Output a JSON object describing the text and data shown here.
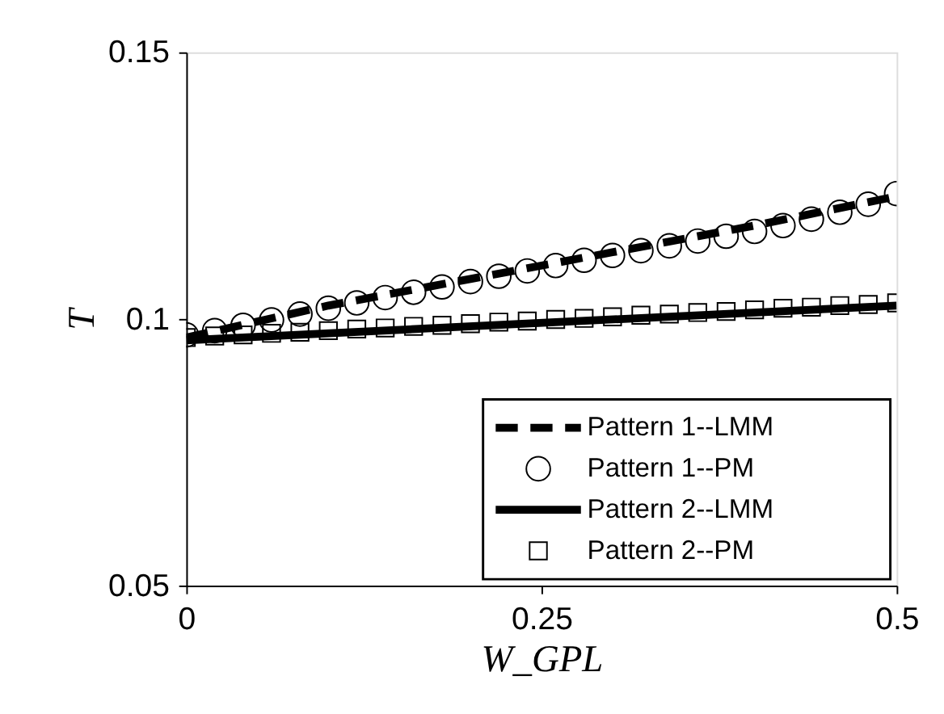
{
  "chart_data": {
    "type": "line",
    "xlabel": "W_GPL",
    "ylabel": "T",
    "xlim": [
      0,
      0.5
    ],
    "ylim": [
      0.05,
      0.15
    ],
    "xticks": [
      0,
      0.25,
      0.5
    ],
    "yticks": [
      0.05,
      0.1,
      0.15
    ],
    "grid": false,
    "legend": "bottom right",
    "series": [
      {
        "name": "Pattern 1--LMM",
        "type": "line",
        "line_style": "dashed",
        "marker": "none",
        "color": "#000000",
        "x": [
          0,
          0.1,
          0.2,
          0.3,
          0.4,
          0.5
        ],
        "values": [
          0.0965,
          0.1025,
          0.1075,
          0.1125,
          0.1175,
          0.123
        ]
      },
      {
        "name": "Pattern 1--PM",
        "type": "scatter",
        "marker": "circle",
        "color": "#000000",
        "x": [
          0,
          0.02,
          0.04,
          0.06,
          0.08,
          0.1,
          0.12,
          0.14,
          0.16,
          0.18,
          0.2,
          0.22,
          0.24,
          0.26,
          0.28,
          0.3,
          0.32,
          0.34,
          0.36,
          0.38,
          0.4,
          0.42,
          0.44,
          0.46,
          0.48,
          0.5
        ],
        "values": [
          0.097,
          0.0978,
          0.0988,
          0.0998,
          0.1009,
          0.102,
          0.103,
          0.104,
          0.105,
          0.106,
          0.107,
          0.108,
          0.109,
          0.11,
          0.111,
          0.1119,
          0.1128,
          0.1137,
          0.1146,
          0.1155,
          0.1164,
          0.1175,
          0.1187,
          0.12,
          0.1215,
          0.1235
        ]
      },
      {
        "name": "Pattern 2--LMM",
        "type": "line",
        "line_style": "solid",
        "marker": "none",
        "color": "#000000",
        "x": [
          0,
          0.5
        ],
        "values": [
          0.096,
          0.1025
        ]
      },
      {
        "name": "Pattern 2--PM",
        "type": "scatter",
        "marker": "square",
        "color": "#000000",
        "x": [
          0,
          0.02,
          0.04,
          0.06,
          0.08,
          0.1,
          0.12,
          0.14,
          0.16,
          0.18,
          0.2,
          0.22,
          0.24,
          0.26,
          0.28,
          0.3,
          0.32,
          0.34,
          0.36,
          0.38,
          0.4,
          0.42,
          0.44,
          0.46,
          0.48,
          0.5
        ],
        "values": [
          0.0965,
          0.0968,
          0.097,
          0.0973,
          0.0975,
          0.0978,
          0.0981,
          0.0983,
          0.0986,
          0.0988,
          0.0991,
          0.0994,
          0.0996,
          0.0999,
          0.1001,
          0.1004,
          0.1007,
          0.1009,
          0.1012,
          0.1014,
          0.1017,
          0.102,
          0.1022,
          0.1025,
          0.1027,
          0.103
        ]
      }
    ]
  }
}
